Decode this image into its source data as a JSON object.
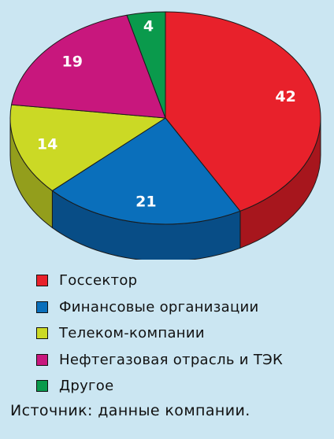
{
  "chart_data": {
    "type": "pie",
    "title": "",
    "categories": [
      "Госсектор",
      "Финансовые организации",
      "Телеком-компании",
      "Нефтегазовая отрасль и ТЭК",
      "Другое"
    ],
    "values": [
      42,
      21,
      14,
      19,
      4
    ],
    "colors": [
      "#e8212b",
      "#0a6fbb",
      "#cbd925",
      "#c8177d",
      "#0a9a4c"
    ],
    "side_colors": [
      "#a7161d",
      "#084d86",
      "#939e1c",
      "#8f1059",
      "#076c36"
    ],
    "legend_position": "bottom-left",
    "style": "3d"
  },
  "source_text": "Источник: данные компании."
}
